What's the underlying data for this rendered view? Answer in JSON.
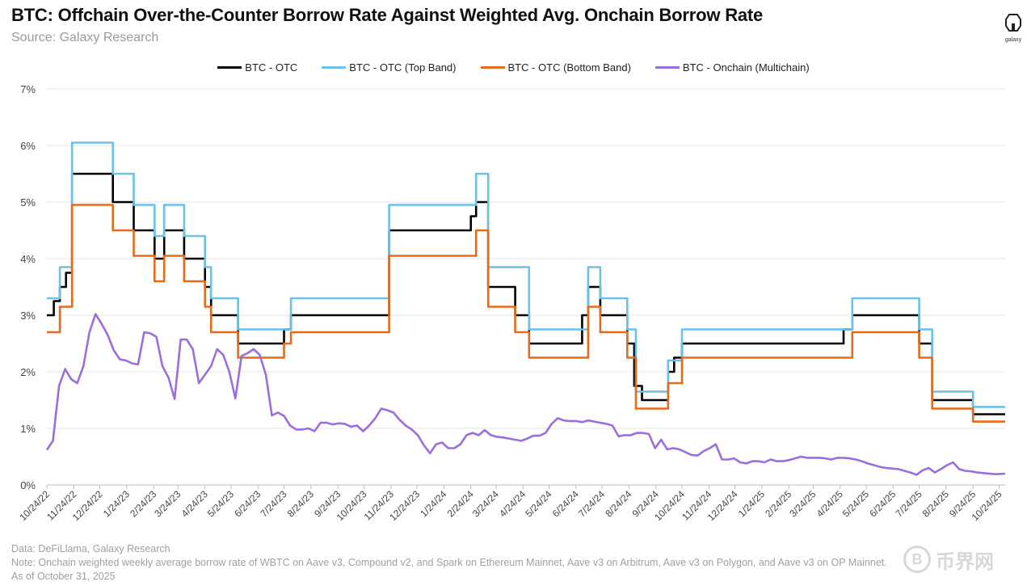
{
  "title": "BTC: Offchain Over-the-Counter Borrow Rate Against Weighted Avg. Onchain Borrow Rate",
  "subtitle": "Source: Galaxy Research",
  "logo_text": "galaxy",
  "footer": {
    "data_line": "Data: DeFiLlama, Galaxy Research",
    "note_line": "Note: Onchain weighted weekly average borrow rate of WBTC on Aave v3, Compound v2, and Spark on Ethereum Mainnet, Aave v3 on Arbitrum, Aave v3 on Polygon, and Aave v3 on OP Mainnet.",
    "asof_line": "As of October 31, 2025"
  },
  "watermark": {
    "symbol": "B",
    "text": "币界网"
  },
  "chart_data": {
    "type": "line",
    "x_type": "date",
    "x_range": [
      "2022-10-24",
      "2025-10-31"
    ],
    "ylim": [
      0,
      7
    ],
    "y_ticks": [
      0,
      1,
      2,
      3,
      4,
      5,
      6,
      7
    ],
    "y_tick_labels": [
      "0%",
      "1%",
      "2%",
      "3%",
      "4%",
      "5%",
      "6%",
      "7%"
    ],
    "x_tick_labels": [
      "10/24/22",
      "11/24/22",
      "12/24/22",
      "1/24/23",
      "2/24/23",
      "3/24/23",
      "4/24/23",
      "5/24/23",
      "6/24/23",
      "7/24/23",
      "8/24/23",
      "9/24/23",
      "10/24/23",
      "11/24/23",
      "12/24/23",
      "1/24/24",
      "2/24/24",
      "3/24/24",
      "4/24/24",
      "5/24/24",
      "6/24/24",
      "7/24/24",
      "8/24/24",
      "9/24/24",
      "10/24/24",
      "11/24/24",
      "12/24/24",
      "1/24/25",
      "2/24/25",
      "3/24/25",
      "4/24/25",
      "5/24/25",
      "6/24/25",
      "7/24/25",
      "8/24/25",
      "9/24/25",
      "10/24/25"
    ],
    "x_tick_dates": [
      "2022-10-24",
      "2022-11-24",
      "2022-12-24",
      "2023-01-24",
      "2023-02-24",
      "2023-03-24",
      "2023-04-24",
      "2023-05-24",
      "2023-06-24",
      "2023-07-24",
      "2023-08-24",
      "2023-09-24",
      "2023-10-24",
      "2023-11-24",
      "2023-12-24",
      "2024-01-24",
      "2024-02-24",
      "2024-03-24",
      "2024-04-24",
      "2024-05-24",
      "2024-06-24",
      "2024-07-24",
      "2024-08-24",
      "2024-09-24",
      "2024-10-24",
      "2024-11-24",
      "2024-12-24",
      "2025-01-24",
      "2025-02-24",
      "2025-03-24",
      "2025-04-24",
      "2025-05-24",
      "2025-06-24",
      "2025-07-24",
      "2025-08-24",
      "2025-09-24",
      "2025-10-24"
    ],
    "grid": true,
    "legend_position": "top-center",
    "series": [
      {
        "name": "BTC - OTC",
        "color": "#000000",
        "step": true,
        "points": [
          [
            "2022-10-24",
            3.0
          ],
          [
            "2022-11-01",
            3.25
          ],
          [
            "2022-11-08",
            3.5
          ],
          [
            "2022-11-15",
            3.75
          ],
          [
            "2022-11-22",
            5.5
          ],
          [
            "2023-01-08",
            5.0
          ],
          [
            "2023-02-01",
            4.5
          ],
          [
            "2023-02-25",
            4.0
          ],
          [
            "2023-03-08",
            4.5
          ],
          [
            "2023-03-31",
            4.0
          ],
          [
            "2023-04-24",
            3.5
          ],
          [
            "2023-05-01",
            3.0
          ],
          [
            "2023-06-01",
            2.5
          ],
          [
            "2023-07-24",
            2.75
          ],
          [
            "2023-08-01",
            3.0
          ],
          [
            "2023-11-22",
            4.5
          ],
          [
            "2024-02-24",
            4.75
          ],
          [
            "2024-03-01",
            5.0
          ],
          [
            "2024-03-15",
            3.5
          ],
          [
            "2024-04-15",
            3.0
          ],
          [
            "2024-05-01",
            2.5
          ],
          [
            "2024-07-01",
            3.0
          ],
          [
            "2024-07-08",
            3.5
          ],
          [
            "2024-07-22",
            3.0
          ],
          [
            "2024-08-22",
            2.5
          ],
          [
            "2024-08-30",
            1.75
          ],
          [
            "2024-09-08",
            1.5
          ],
          [
            "2024-10-08",
            2.0
          ],
          [
            "2024-10-15",
            2.25
          ],
          [
            "2024-10-24",
            2.5
          ],
          [
            "2025-04-28",
            2.75
          ],
          [
            "2025-05-08",
            3.0
          ],
          [
            "2025-07-24",
            2.5
          ],
          [
            "2025-08-08",
            1.5
          ],
          [
            "2025-09-24",
            1.25
          ],
          [
            "2025-10-31",
            1.25
          ]
        ]
      },
      {
        "name": "BTC - OTC (Top Band)",
        "color": "#6cc1e6",
        "step": true,
        "points": [
          [
            "2022-10-24",
            3.3
          ],
          [
            "2022-11-08",
            3.85
          ],
          [
            "2022-11-22",
            6.05
          ],
          [
            "2023-01-08",
            5.5
          ],
          [
            "2023-02-01",
            4.95
          ],
          [
            "2023-02-25",
            4.4
          ],
          [
            "2023-03-08",
            4.95
          ],
          [
            "2023-03-31",
            4.4
          ],
          [
            "2023-04-24",
            3.85
          ],
          [
            "2023-05-01",
            3.3
          ],
          [
            "2023-06-01",
            2.75
          ],
          [
            "2023-08-01",
            3.3
          ],
          [
            "2023-11-22",
            4.95
          ],
          [
            "2024-03-01",
            5.5
          ],
          [
            "2024-03-15",
            3.85
          ],
          [
            "2024-05-01",
            2.75
          ],
          [
            "2024-07-08",
            3.85
          ],
          [
            "2024-07-22",
            3.3
          ],
          [
            "2024-08-22",
            2.75
          ],
          [
            "2024-09-01",
            1.65
          ],
          [
            "2024-10-08",
            2.2
          ],
          [
            "2024-10-24",
            2.75
          ],
          [
            "2025-05-08",
            3.3
          ],
          [
            "2025-07-24",
            2.75
          ],
          [
            "2025-08-08",
            1.65
          ],
          [
            "2025-09-24",
            1.38
          ],
          [
            "2025-10-31",
            1.38
          ]
        ]
      },
      {
        "name": "BTC - OTC (Bottom Band)",
        "color": "#e56a1b",
        "step": true,
        "points": [
          [
            "2022-10-24",
            2.7
          ],
          [
            "2022-11-08",
            3.15
          ],
          [
            "2022-11-22",
            4.95
          ],
          [
            "2023-01-08",
            4.5
          ],
          [
            "2023-02-01",
            4.05
          ],
          [
            "2023-02-25",
            3.6
          ],
          [
            "2023-03-08",
            4.05
          ],
          [
            "2023-03-31",
            3.6
          ],
          [
            "2023-04-24",
            3.15
          ],
          [
            "2023-05-01",
            2.7
          ],
          [
            "2023-06-01",
            2.25
          ],
          [
            "2023-07-24",
            2.5
          ],
          [
            "2023-08-01",
            2.7
          ],
          [
            "2023-11-22",
            4.05
          ],
          [
            "2024-03-01",
            4.5
          ],
          [
            "2024-03-15",
            3.15
          ],
          [
            "2024-04-15",
            2.7
          ],
          [
            "2024-05-01",
            2.25
          ],
          [
            "2024-07-08",
            3.15
          ],
          [
            "2024-07-22",
            2.7
          ],
          [
            "2024-08-22",
            2.25
          ],
          [
            "2024-09-01",
            1.35
          ],
          [
            "2024-10-08",
            1.8
          ],
          [
            "2024-10-24",
            2.25
          ],
          [
            "2025-05-08",
            2.7
          ],
          [
            "2025-07-24",
            2.25
          ],
          [
            "2025-08-08",
            1.35
          ],
          [
            "2025-09-24",
            1.12
          ],
          [
            "2025-10-31",
            1.12
          ]
        ]
      },
      {
        "name": "BTC - Onchain (Multichain)",
        "color": "#9b6ee0",
        "step": false,
        "points": [
          [
            "2022-10-24",
            0.62
          ],
          [
            "2022-10-31",
            0.78
          ],
          [
            "2022-11-07",
            1.75
          ],
          [
            "2022-11-14",
            2.05
          ],
          [
            "2022-11-21",
            1.87
          ],
          [
            "2022-11-28",
            1.8
          ],
          [
            "2022-12-05",
            2.1
          ],
          [
            "2022-12-12",
            2.7
          ],
          [
            "2022-12-19",
            3.02
          ],
          [
            "2022-12-26",
            2.85
          ],
          [
            "2023-01-02",
            2.65
          ],
          [
            "2023-01-09",
            2.38
          ],
          [
            "2023-01-16",
            2.22
          ],
          [
            "2023-01-23",
            2.2
          ],
          [
            "2023-01-30",
            2.15
          ],
          [
            "2023-02-06",
            2.13
          ],
          [
            "2023-02-13",
            2.7
          ],
          [
            "2023-02-20",
            2.68
          ],
          [
            "2023-02-27",
            2.62
          ],
          [
            "2023-03-06",
            2.1
          ],
          [
            "2023-03-13",
            1.9
          ],
          [
            "2023-03-20",
            1.52
          ],
          [
            "2023-03-27",
            2.57
          ],
          [
            "2023-04-03",
            2.57
          ],
          [
            "2023-04-10",
            2.4
          ],
          [
            "2023-04-17",
            1.8
          ],
          [
            "2023-04-24",
            1.95
          ],
          [
            "2023-05-01",
            2.1
          ],
          [
            "2023-05-08",
            2.4
          ],
          [
            "2023-05-15",
            2.3
          ],
          [
            "2023-05-22",
            2.0
          ],
          [
            "2023-05-29",
            1.53
          ],
          [
            "2023-06-05",
            2.28
          ],
          [
            "2023-06-12",
            2.33
          ],
          [
            "2023-06-19",
            2.4
          ],
          [
            "2023-06-26",
            2.3
          ],
          [
            "2023-07-03",
            1.95
          ],
          [
            "2023-07-10",
            1.23
          ],
          [
            "2023-07-17",
            1.28
          ],
          [
            "2023-07-24",
            1.22
          ],
          [
            "2023-07-31",
            1.05
          ],
          [
            "2023-08-07",
            0.98
          ],
          [
            "2023-08-14",
            0.98
          ],
          [
            "2023-08-21",
            1.0
          ],
          [
            "2023-08-28",
            0.95
          ],
          [
            "2023-09-04",
            1.1
          ],
          [
            "2023-09-11",
            1.1
          ],
          [
            "2023-09-18",
            1.07
          ],
          [
            "2023-09-25",
            1.09
          ],
          [
            "2023-10-02",
            1.08
          ],
          [
            "2023-10-09",
            1.03
          ],
          [
            "2023-10-16",
            1.05
          ],
          [
            "2023-10-23",
            0.95
          ],
          [
            "2023-10-30",
            1.05
          ],
          [
            "2023-11-06",
            1.18
          ],
          [
            "2023-11-13",
            1.35
          ],
          [
            "2023-11-20",
            1.32
          ],
          [
            "2023-11-27",
            1.28
          ],
          [
            "2023-12-04",
            1.15
          ],
          [
            "2023-12-11",
            1.05
          ],
          [
            "2023-12-18",
            0.98
          ],
          [
            "2023-12-25",
            0.88
          ],
          [
            "2024-01-01",
            0.7
          ],
          [
            "2024-01-08",
            0.56
          ],
          [
            "2024-01-15",
            0.72
          ],
          [
            "2024-01-22",
            0.75
          ],
          [
            "2024-01-29",
            0.65
          ],
          [
            "2024-02-05",
            0.65
          ],
          [
            "2024-02-12",
            0.72
          ],
          [
            "2024-02-19",
            0.88
          ],
          [
            "2024-02-26",
            0.92
          ],
          [
            "2024-03-04",
            0.88
          ],
          [
            "2024-03-11",
            0.97
          ],
          [
            "2024-03-18",
            0.88
          ],
          [
            "2024-03-25",
            0.85
          ],
          [
            "2024-04-01",
            0.84
          ],
          [
            "2024-04-08",
            0.82
          ],
          [
            "2024-04-15",
            0.8
          ],
          [
            "2024-04-22",
            0.78
          ],
          [
            "2024-04-29",
            0.82
          ],
          [
            "2024-05-06",
            0.87
          ],
          [
            "2024-05-13",
            0.87
          ],
          [
            "2024-05-20",
            0.92
          ],
          [
            "2024-05-27",
            1.08
          ],
          [
            "2024-06-03",
            1.18
          ],
          [
            "2024-06-10",
            1.14
          ],
          [
            "2024-06-17",
            1.13
          ],
          [
            "2024-06-24",
            1.13
          ],
          [
            "2024-07-01",
            1.11
          ],
          [
            "2024-07-08",
            1.14
          ],
          [
            "2024-07-15",
            1.12
          ],
          [
            "2024-07-22",
            1.1
          ],
          [
            "2024-07-29",
            1.08
          ],
          [
            "2024-08-05",
            1.05
          ],
          [
            "2024-08-12",
            0.86
          ],
          [
            "2024-08-19",
            0.88
          ],
          [
            "2024-08-26",
            0.88
          ],
          [
            "2024-09-02",
            0.92
          ],
          [
            "2024-09-09",
            0.92
          ],
          [
            "2024-09-16",
            0.9
          ],
          [
            "2024-09-23",
            0.65
          ],
          [
            "2024-09-30",
            0.8
          ],
          [
            "2024-10-07",
            0.63
          ],
          [
            "2024-10-14",
            0.65
          ],
          [
            "2024-10-21",
            0.63
          ],
          [
            "2024-10-28",
            0.58
          ],
          [
            "2024-11-04",
            0.53
          ],
          [
            "2024-11-11",
            0.52
          ],
          [
            "2024-11-18",
            0.6
          ],
          [
            "2024-11-25",
            0.65
          ],
          [
            "2024-12-02",
            0.72
          ],
          [
            "2024-12-09",
            0.45
          ],
          [
            "2024-12-16",
            0.45
          ],
          [
            "2024-12-23",
            0.47
          ],
          [
            "2024-12-30",
            0.4
          ],
          [
            "2025-01-06",
            0.38
          ],
          [
            "2025-01-13",
            0.42
          ],
          [
            "2025-01-20",
            0.42
          ],
          [
            "2025-01-27",
            0.4
          ],
          [
            "2025-02-03",
            0.45
          ],
          [
            "2025-02-10",
            0.42
          ],
          [
            "2025-02-17",
            0.42
          ],
          [
            "2025-02-24",
            0.44
          ],
          [
            "2025-03-03",
            0.47
          ],
          [
            "2025-03-10",
            0.5
          ],
          [
            "2025-03-17",
            0.48
          ],
          [
            "2025-03-24",
            0.48
          ],
          [
            "2025-03-31",
            0.48
          ],
          [
            "2025-04-07",
            0.47
          ],
          [
            "2025-04-14",
            0.45
          ],
          [
            "2025-04-21",
            0.48
          ],
          [
            "2025-04-28",
            0.48
          ],
          [
            "2025-05-05",
            0.47
          ],
          [
            "2025-05-12",
            0.45
          ],
          [
            "2025-05-19",
            0.42
          ],
          [
            "2025-05-26",
            0.38
          ],
          [
            "2025-06-02",
            0.35
          ],
          [
            "2025-06-09",
            0.32
          ],
          [
            "2025-06-16",
            0.3
          ],
          [
            "2025-06-23",
            0.29
          ],
          [
            "2025-06-30",
            0.28
          ],
          [
            "2025-07-07",
            0.25
          ],
          [
            "2025-07-14",
            0.22
          ],
          [
            "2025-07-21",
            0.18
          ],
          [
            "2025-07-28",
            0.26
          ],
          [
            "2025-08-04",
            0.3
          ],
          [
            "2025-08-11",
            0.22
          ],
          [
            "2025-08-18",
            0.28
          ],
          [
            "2025-08-25",
            0.35
          ],
          [
            "2025-09-01",
            0.4
          ],
          [
            "2025-09-08",
            0.28
          ],
          [
            "2025-09-15",
            0.25
          ],
          [
            "2025-09-22",
            0.24
          ],
          [
            "2025-09-29",
            0.22
          ],
          [
            "2025-10-06",
            0.21
          ],
          [
            "2025-10-13",
            0.2
          ],
          [
            "2025-10-20",
            0.19
          ],
          [
            "2025-10-31",
            0.2
          ]
        ]
      }
    ]
  }
}
